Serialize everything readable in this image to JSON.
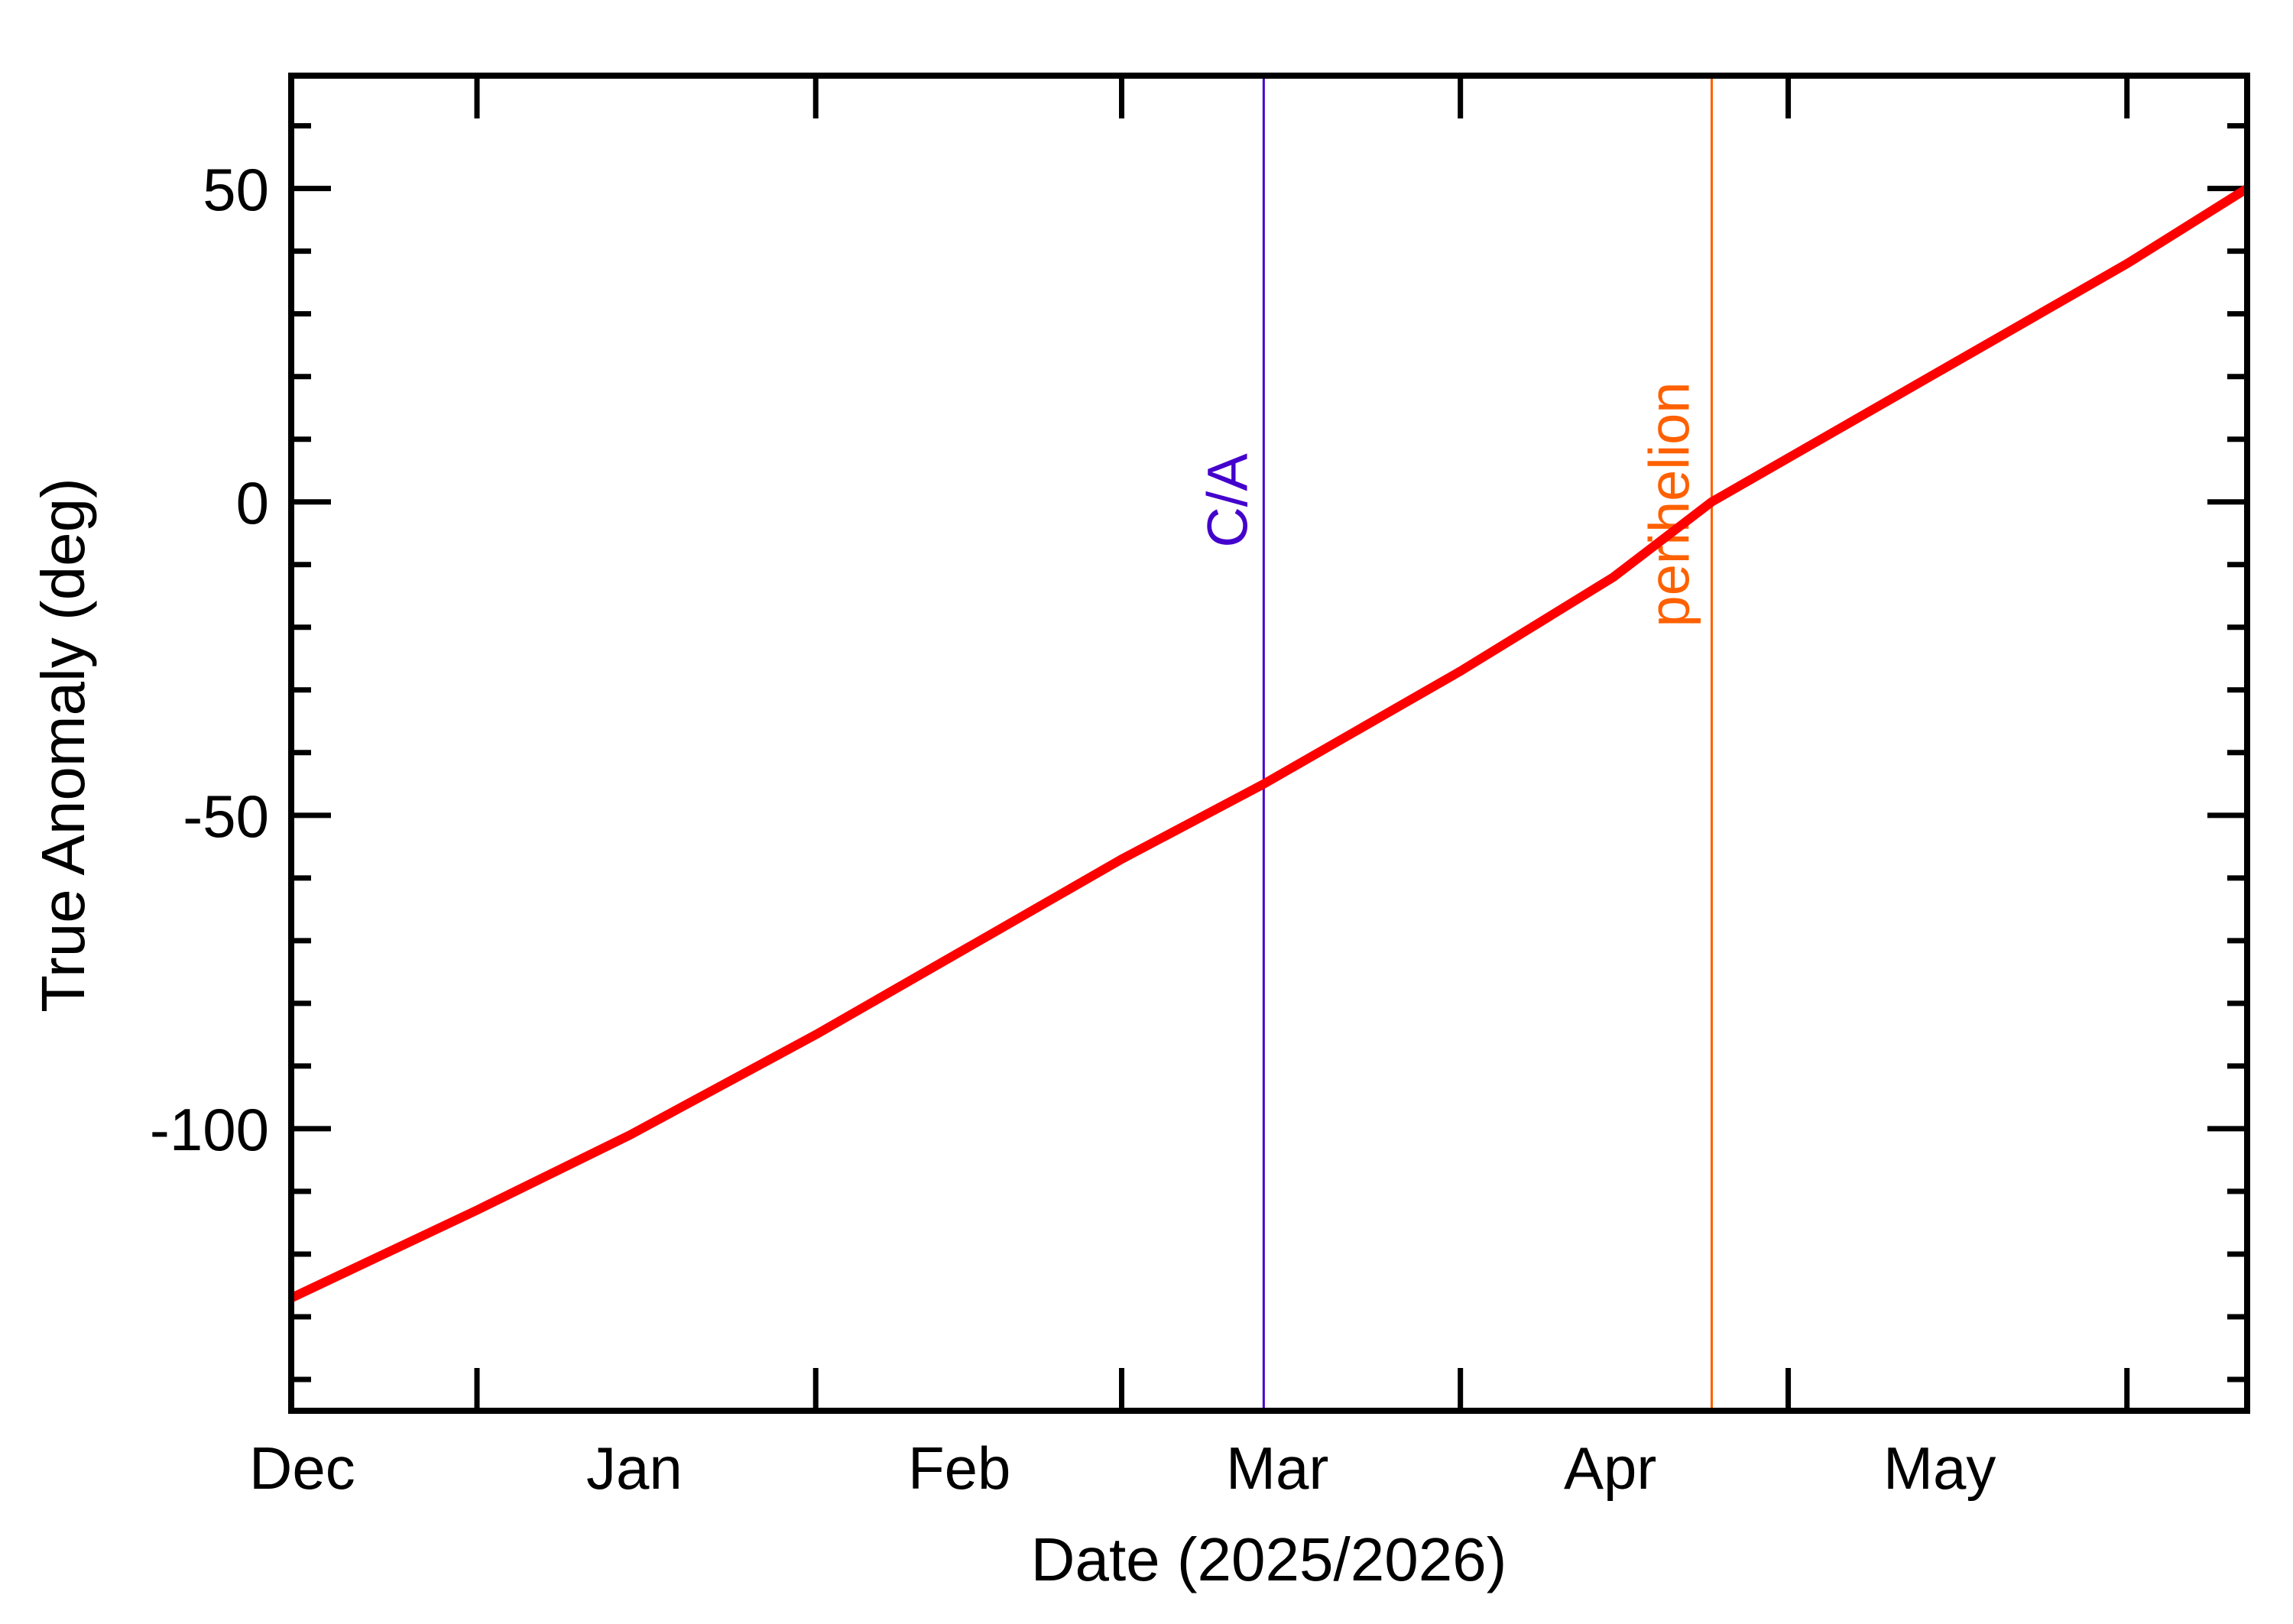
{
  "chart_data": {
    "type": "line",
    "title": "",
    "xlabel": "Date (2025/2026)",
    "ylabel": "True Anomaly (deg)",
    "x_tick_labels": [
      "Dec",
      "Jan",
      "Feb",
      "Mar",
      "Apr",
      "May"
    ],
    "y_tick_labels": [
      "50",
      "0",
      "-50",
      "-100"
    ],
    "y_major_ticks": [
      50,
      0,
      -50,
      -100
    ],
    "y_minor_step": 10,
    "ylim": [
      -145,
      68
    ],
    "xlim": [
      "2025-12-15",
      "2026-06-12"
    ],
    "grid": false,
    "series": [
      {
        "name": "True Anomaly",
        "color": "#ff0000",
        "x": [
          "2025-12-15",
          "2026-01-01",
          "2026-01-15",
          "2026-02-01",
          "2026-02-15",
          "2026-03-01",
          "2026-03-14",
          "2026-04-01",
          "2026-04-15",
          "2026-04-24",
          "2026-05-01",
          "2026-05-15",
          "2026-06-01",
          "2026-06-12"
        ],
        "values": [
          -127,
          -113,
          -101,
          -85,
          -71,
          -57,
          -45,
          -27,
          -12,
          0,
          7,
          21,
          38,
          50
        ]
      }
    ],
    "annotations": [
      {
        "label": "C/A",
        "date": "2026-03-14",
        "color": "#4400cc",
        "type": "vertical-line"
      },
      {
        "label": "perihelion",
        "date": "2026-04-24",
        "color": "#ff6000",
        "type": "vertical-line"
      }
    ]
  }
}
